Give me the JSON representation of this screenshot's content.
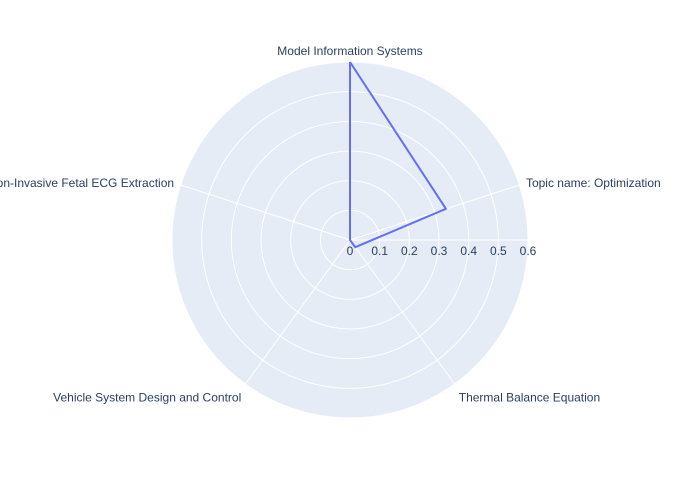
{
  "chart_data": {
    "type": "radar",
    "axes": [
      "Model Information Systems",
      "Topic name: Optimization",
      "Thermal Balance Equation",
      "Vehicle System Design and Control",
      "Non-Invasive Fetal ECG Extraction"
    ],
    "series": [
      {
        "values": [
          0.6,
          0.34,
          0.03,
          0.0,
          0.0
        ],
        "color": "#636efa"
      }
    ],
    "radial_ticks": [
      "0",
      "0.1",
      "0.2",
      "0.3",
      "0.4",
      "0.5",
      "0.6"
    ],
    "radial_range": [
      0,
      0.6
    ],
    "grid": true,
    "legend": "none",
    "colors": {
      "plot_bg": "#e5ecf6",
      "grid": "#ffffff",
      "text": "#2a3f5f"
    }
  }
}
